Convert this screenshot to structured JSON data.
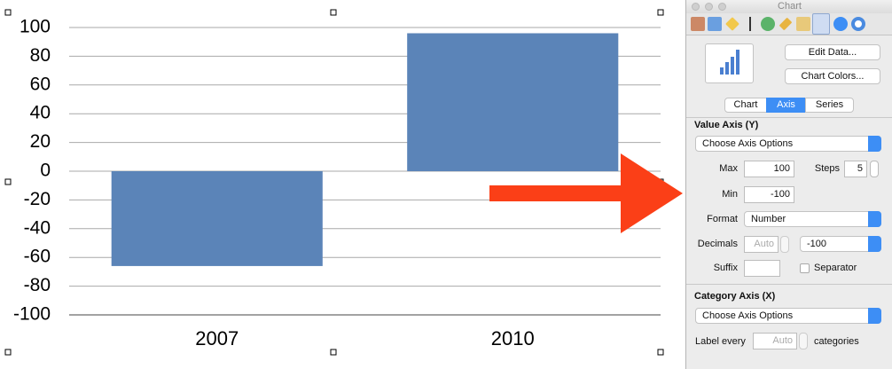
{
  "chart_data": {
    "type": "bar",
    "categories": [
      "2007",
      "2010"
    ],
    "values": [
      -66,
      96
    ],
    "color": "#5b84b8",
    "ylim": [
      -100,
      100
    ],
    "yticks": [
      -100,
      -80,
      -60,
      -40,
      -20,
      0,
      20,
      40,
      60,
      80,
      100
    ],
    "grid": true
  },
  "inspector": {
    "window_title": "Chart",
    "buttons": [
      "Edit Data...",
      "Chart Colors..."
    ],
    "tabs": [
      "Chart",
      "Axis",
      "Series"
    ],
    "value_axis": {
      "heading": "Value Axis (Y)",
      "options": "Choose Axis Options",
      "max_label": "Max",
      "max": "100",
      "steps_label": "Steps",
      "steps": "5",
      "min_label": "Min",
      "min": "-100",
      "format_label": "Format",
      "format": "Number",
      "decimals_label": "Decimals",
      "decimals": "Auto",
      "decimals_format": "-100",
      "suffix_label": "Suffix",
      "separator": "Separator"
    },
    "category_axis": {
      "heading": "Category Axis (X)",
      "options": "Choose Axis Options",
      "label_every": "Label every",
      "label_every_value": "Auto",
      "categories_label": "categories"
    }
  }
}
